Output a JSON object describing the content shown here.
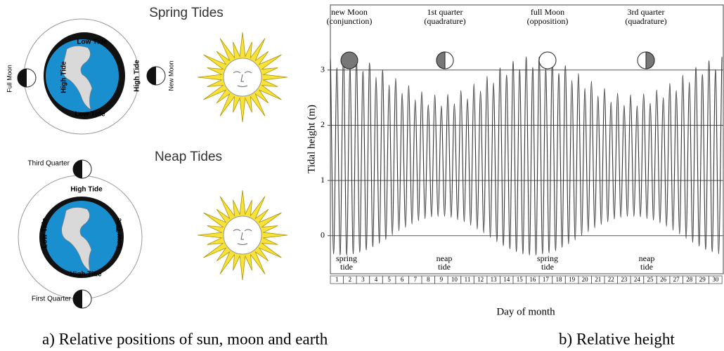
{
  "diagram": {
    "spring": {
      "title": "Spring Tides",
      "full_moon": "Full Moon",
      "new_moon": "New Moon",
      "low_top": "Low Tide",
      "low_bottom": "Low Tide",
      "high_left": "High Tide",
      "high_right": "High Tide"
    },
    "neap": {
      "title": "Neap Tides",
      "third_quarter": "Third Quarter",
      "first_quarter": "First Quarter",
      "high_top": "High Tide",
      "high_bottom": "High Tide",
      "low_left": "Low Tide",
      "low_right": "Low Tide"
    }
  },
  "captions": {
    "a": "a) Relative positions of sun, moon and earth",
    "b": "b) Relative height"
  },
  "chart_data": {
    "type": "line",
    "ylabel": "Tidal height (m)",
    "xlabel": "Day of month",
    "color": "#333333",
    "xlim": [
      0.5,
      30.6
    ],
    "ylim": [
      -0.69,
      4.18
    ],
    "yticks": [
      0,
      1,
      2,
      3
    ],
    "xticks": [
      1,
      2,
      3,
      4,
      5,
      6,
      7,
      8,
      9,
      10,
      11,
      12,
      13,
      14,
      15,
      16,
      17,
      18,
      19,
      20,
      21,
      22,
      23,
      24,
      25,
      26,
      27,
      28,
      29,
      30
    ],
    "grid": true,
    "phase_labels": [
      [
        "new Moon",
        "(conjunction)"
      ],
      [
        "1st quarter",
        "(quadrature)"
      ],
      [
        "full Moon",
        "(opposition)"
      ],
      [
        "3rd quarter",
        "(quadrature)"
      ]
    ],
    "tide_labels": [
      [
        "spring",
        "tide"
      ],
      [
        "neap",
        "tide"
      ],
      [
        "spring",
        "tide"
      ],
      [
        "neap",
        "tide"
      ]
    ],
    "x": [
      0.5,
      0.75,
      1,
      1.25,
      1.5,
      1.75,
      2,
      2.25,
      2.5,
      2.75,
      3,
      3.25,
      3.5,
      3.75,
      4,
      4.25,
      4.5,
      4.75,
      5,
      5.25,
      5.5,
      5.75,
      6,
      6.25,
      6.5,
      6.75,
      7,
      7.25,
      7.5,
      7.75,
      8,
      8.25,
      8.5,
      8.75,
      9,
      9.25,
      9.5,
      9.75,
      10,
      10.25,
      10.5,
      10.75,
      11,
      11.25,
      11.5,
      11.75,
      12,
      12.25,
      12.5,
      12.75,
      13,
      13.25,
      13.5,
      13.75,
      14,
      14.25,
      14.5,
      14.75,
      15,
      15.25,
      15.5,
      15.75,
      16,
      16.25,
      16.5,
      16.75,
      17,
      17.25,
      17.5,
      17.75,
      18,
      18.25,
      18.5,
      18.75,
      19,
      19.25,
      19.5,
      19.75,
      20,
      20.25,
      20.5,
      20.75,
      21,
      21.25,
      21.5,
      21.75,
      22,
      22.25,
      22.5,
      22.75,
      23,
      23.25,
      23.5,
      23.75,
      24,
      24.25,
      24.5,
      24.75,
      25,
      25.25,
      25.5,
      25.75,
      26,
      26.25,
      26.5,
      26.75,
      27,
      27.25,
      27.5,
      27.75,
      28,
      28.25,
      28.5,
      28.75,
      29,
      29.25,
      29.5,
      29.75,
      30,
      30.25,
      30.5
    ],
    "values": [
      3.22,
      -0.33,
      3.04,
      -0.35,
      3.25,
      -0.35,
      3.04,
      -0.33,
      3.22,
      -0.3,
      2.98,
      -0.26,
      3.13,
      -0.2,
      2.87,
      -0.14,
      3.0,
      -0.07,
      2.73,
      0.01,
      2.85,
      0.09,
      2.58,
      0.15,
      2.72,
      0.21,
      2.46,
      0.27,
      2.61,
      0.31,
      2.37,
      0.34,
      2.55,
      0.35,
      2.35,
      0.35,
      2.56,
      0.33,
      2.39,
      0.29,
      2.63,
      0.25,
      2.48,
      0.19,
      2.75,
      0.12,
      2.62,
      0.05,
      2.89,
      -0.03,
      2.77,
      -0.11,
      3.04,
      -0.18,
      2.91,
      -0.24,
      3.16,
      -0.29,
      3.01,
      -0.33,
      3.24,
      -0.35,
      3.05,
      -0.35,
      3.24,
      -0.33,
      3.02,
      -0.31,
      3.19,
      -0.27,
      2.94,
      -0.21,
      3.08,
      -0.15,
      2.81,
      -0.08,
      2.94,
      0.0,
      2.67,
      0.07,
      2.8,
      0.14,
      2.53,
      0.2,
      2.67,
      0.25,
      2.42,
      0.3,
      2.58,
      0.33,
      2.36,
      0.35,
      2.55,
      0.35,
      2.35,
      0.34,
      2.57,
      0.31,
      2.4,
      0.28,
      2.64,
      0.23,
      2.5,
      0.17,
      2.76,
      0.1,
      2.63,
      0.03,
      2.91,
      -0.05,
      2.78,
      -0.12,
      3.05,
      -0.19,
      2.92,
      -0.25,
      3.17,
      -0.29,
      3.01,
      -0.33,
      3.24
    ]
  }
}
